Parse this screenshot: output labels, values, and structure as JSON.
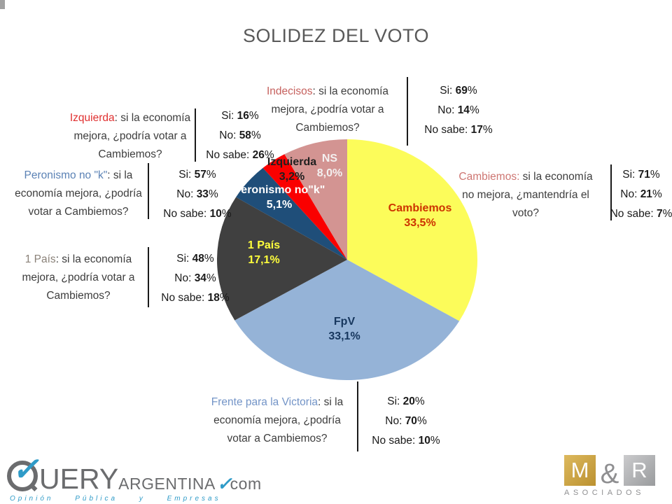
{
  "title": "SOLIDEZ DEL VOTO",
  "chart_data": {
    "type": "pie",
    "title": "SOLIDEZ DEL VOTO",
    "start_angle_deg": 0,
    "clockwise": true,
    "legend": "none",
    "slices": [
      {
        "name": "Cambiemos",
        "value": 33.5,
        "pct_label": "33,5%",
        "color": "#FCFC5A",
        "label_color": "#CC3300",
        "label_x": 600,
        "label_y": 302
      },
      {
        "name": "FpV",
        "value": 33.1,
        "pct_label": "33,1%",
        "color": "#95B3D7",
        "label_color": "#17375E",
        "label_x": 492,
        "label_y": 464
      },
      {
        "name": "1 País",
        "value": 17.1,
        "pct_label": "17,1%",
        "color": "#404040",
        "label_color": "#FFFF3C",
        "label_x": 377,
        "label_y": 355
      },
      {
        "name": "Peronismo no\"k\"",
        "value": 5.1,
        "pct_label": "5,1%",
        "color": "#1F4E79",
        "label_color": "#FFFFFF",
        "label_x": 399,
        "label_y": 276
      },
      {
        "name": "Izquierda",
        "value": 3.2,
        "pct_label": "3,2%",
        "color": "#FA0000",
        "label_color": "#1F1F1F",
        "label_x": 417,
        "label_y": 236
      },
      {
        "name": "NS",
        "value": 8.0,
        "pct_label": "8,0%",
        "color": "#D39492",
        "label_color": "#F3EFEF",
        "label_x": 471,
        "label_y": 231
      }
    ],
    "callouts": {
      "indecisos": {
        "lead": "Indecisos",
        "lead_color": "#C6615E",
        "line1_rest": ": si la economía",
        "line2": "mejora, ¿podría votar a",
        "line3": "Cambiemos?",
        "si": {
          "pre": "Si: ",
          "num": "69",
          "post": "%"
        },
        "no": {
          "pre": "No: ",
          "num": "14",
          "post": "%"
        },
        "nosabe": {
          "pre": "No sabe: ",
          "num": "17",
          "post": "%"
        }
      },
      "izquierda": {
        "lead": "Izquierda",
        "lead_color": "#E03030",
        "line1_rest": ": si la economía",
        "line2": "mejora, ¿podría votar a",
        "line3": "Cambiemos?",
        "si": {
          "pre": "Si: ",
          "num": "16",
          "post": "%"
        },
        "no": {
          "pre": "No: ",
          "num": "58",
          "post": "%"
        },
        "nosabe": {
          "pre": "No sabe: ",
          "num": "26",
          "post": "%"
        }
      },
      "peronismo": {
        "lead": "Peronismo no \"k\"",
        "lead_color": "#5B82B5",
        "line1_rest": ": si la",
        "line2": "economía mejora, ¿podría",
        "line3": "votar a Cambiemos?",
        "si": {
          "pre": "Si: ",
          "num": "57",
          "post": "%"
        },
        "no": {
          "pre": "No: ",
          "num": "33",
          "post": "%"
        },
        "nosabe": {
          "pre": "No sabe: ",
          "num": "10",
          "post": "%"
        }
      },
      "pais": {
        "lead": "1 País",
        "lead_color": "#8A8178",
        "line1_rest": ": si la economía",
        "line2": "mejora, ¿podría votar a",
        "line3": "Cambiemos?",
        "si": {
          "pre": "Si: ",
          "num": "48",
          "post": "%"
        },
        "no": {
          "pre": "No: ",
          "num": "34",
          "post": "%"
        },
        "nosabe": {
          "pre": "No sabe: ",
          "num": "18",
          "post": "%"
        }
      },
      "cambiemos": {
        "lead": "Cambiemos:",
        "lead_color": "#CE7672",
        "line1_rest": " si la economía",
        "line2": "no mejora, ¿mantendría el",
        "line3": "voto?",
        "si": {
          "pre": "Si: ",
          "num": "71",
          "post": "%"
        },
        "no": {
          "pre": "No: ",
          "num": "21",
          "post": "%"
        },
        "nosabe": {
          "pre": "No sabe: ",
          "num": "7",
          "post": "%"
        }
      },
      "fpv": {
        "lead": "Frente para la Victoria",
        "lead_color": "#7394C7",
        "line1_rest": ": si la",
        "line2": "economía mejora, ¿podría",
        "line3": "votar a Cambiemos?",
        "si": {
          "pre": "Si: ",
          "num": "20",
          "post": "%"
        },
        "no": {
          "pre": "No: ",
          "num": "70",
          "post": "%"
        },
        "nosabe": {
          "pre": "No sabe: ",
          "num": "10",
          "post": "%"
        }
      }
    }
  },
  "footer": {
    "query_logo": {
      "q_letter": "Q",
      "brand_rest": "UERY",
      "suffix": "ARGENTINA",
      "domain": "com",
      "tagline": "Opinión Pública y Empresas",
      "accent_color": "#2F9BC8",
      "gray_color": "#6B6C6E"
    },
    "mr_logo": {
      "m": "M",
      "amp": "&",
      "r": "R",
      "sub": "ASOCIADOS",
      "gold_color": "#C9A035",
      "gray_color": "#8F8F91"
    }
  }
}
